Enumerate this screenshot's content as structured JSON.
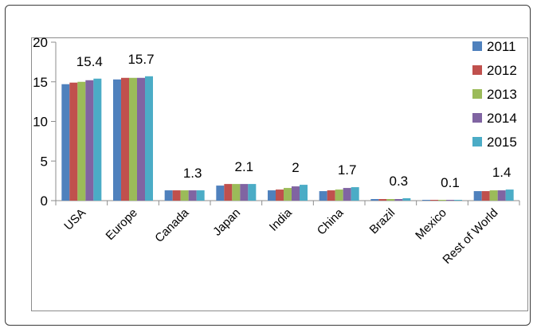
{
  "chart_data": {
    "type": "bar",
    "title": "",
    "xlabel": "",
    "ylabel": "",
    "ylim": [
      0,
      20
    ],
    "yticks": [
      0,
      5,
      10,
      15,
      20
    ],
    "grid": false,
    "legend_position": "top-right",
    "categories": [
      "USA",
      "Europe",
      "Canada",
      "Japan",
      "India",
      "China",
      "Brazil",
      "Mexico",
      "Rest of World"
    ],
    "series": [
      {
        "name": "2011",
        "color": "#4f81bd",
        "values": [
          14.7,
          15.3,
          1.3,
          1.9,
          1.3,
          1.2,
          0.2,
          0.1,
          1.2
        ]
      },
      {
        "name": "2012",
        "color": "#c0504d",
        "values": [
          14.9,
          15.5,
          1.3,
          2.1,
          1.4,
          1.3,
          0.2,
          0.1,
          1.2
        ]
      },
      {
        "name": "2013",
        "color": "#9bbb59",
        "values": [
          15.0,
          15.5,
          1.3,
          2.1,
          1.6,
          1.4,
          0.2,
          0.1,
          1.3
        ]
      },
      {
        "name": "2014",
        "color": "#8064a2",
        "values": [
          15.2,
          15.5,
          1.3,
          2.1,
          1.8,
          1.6,
          0.2,
          0.1,
          1.3
        ]
      },
      {
        "name": "2015",
        "color": "#4bacc6",
        "values": [
          15.4,
          15.7,
          1.3,
          2.1,
          2.0,
          1.7,
          0.3,
          0.1,
          1.4
        ]
      }
    ],
    "data_labels": [
      "15.4",
      "15.7",
      "1.3",
      "2.1",
      "2",
      "1.7",
      "0.3",
      "0.1",
      "1.4"
    ]
  }
}
